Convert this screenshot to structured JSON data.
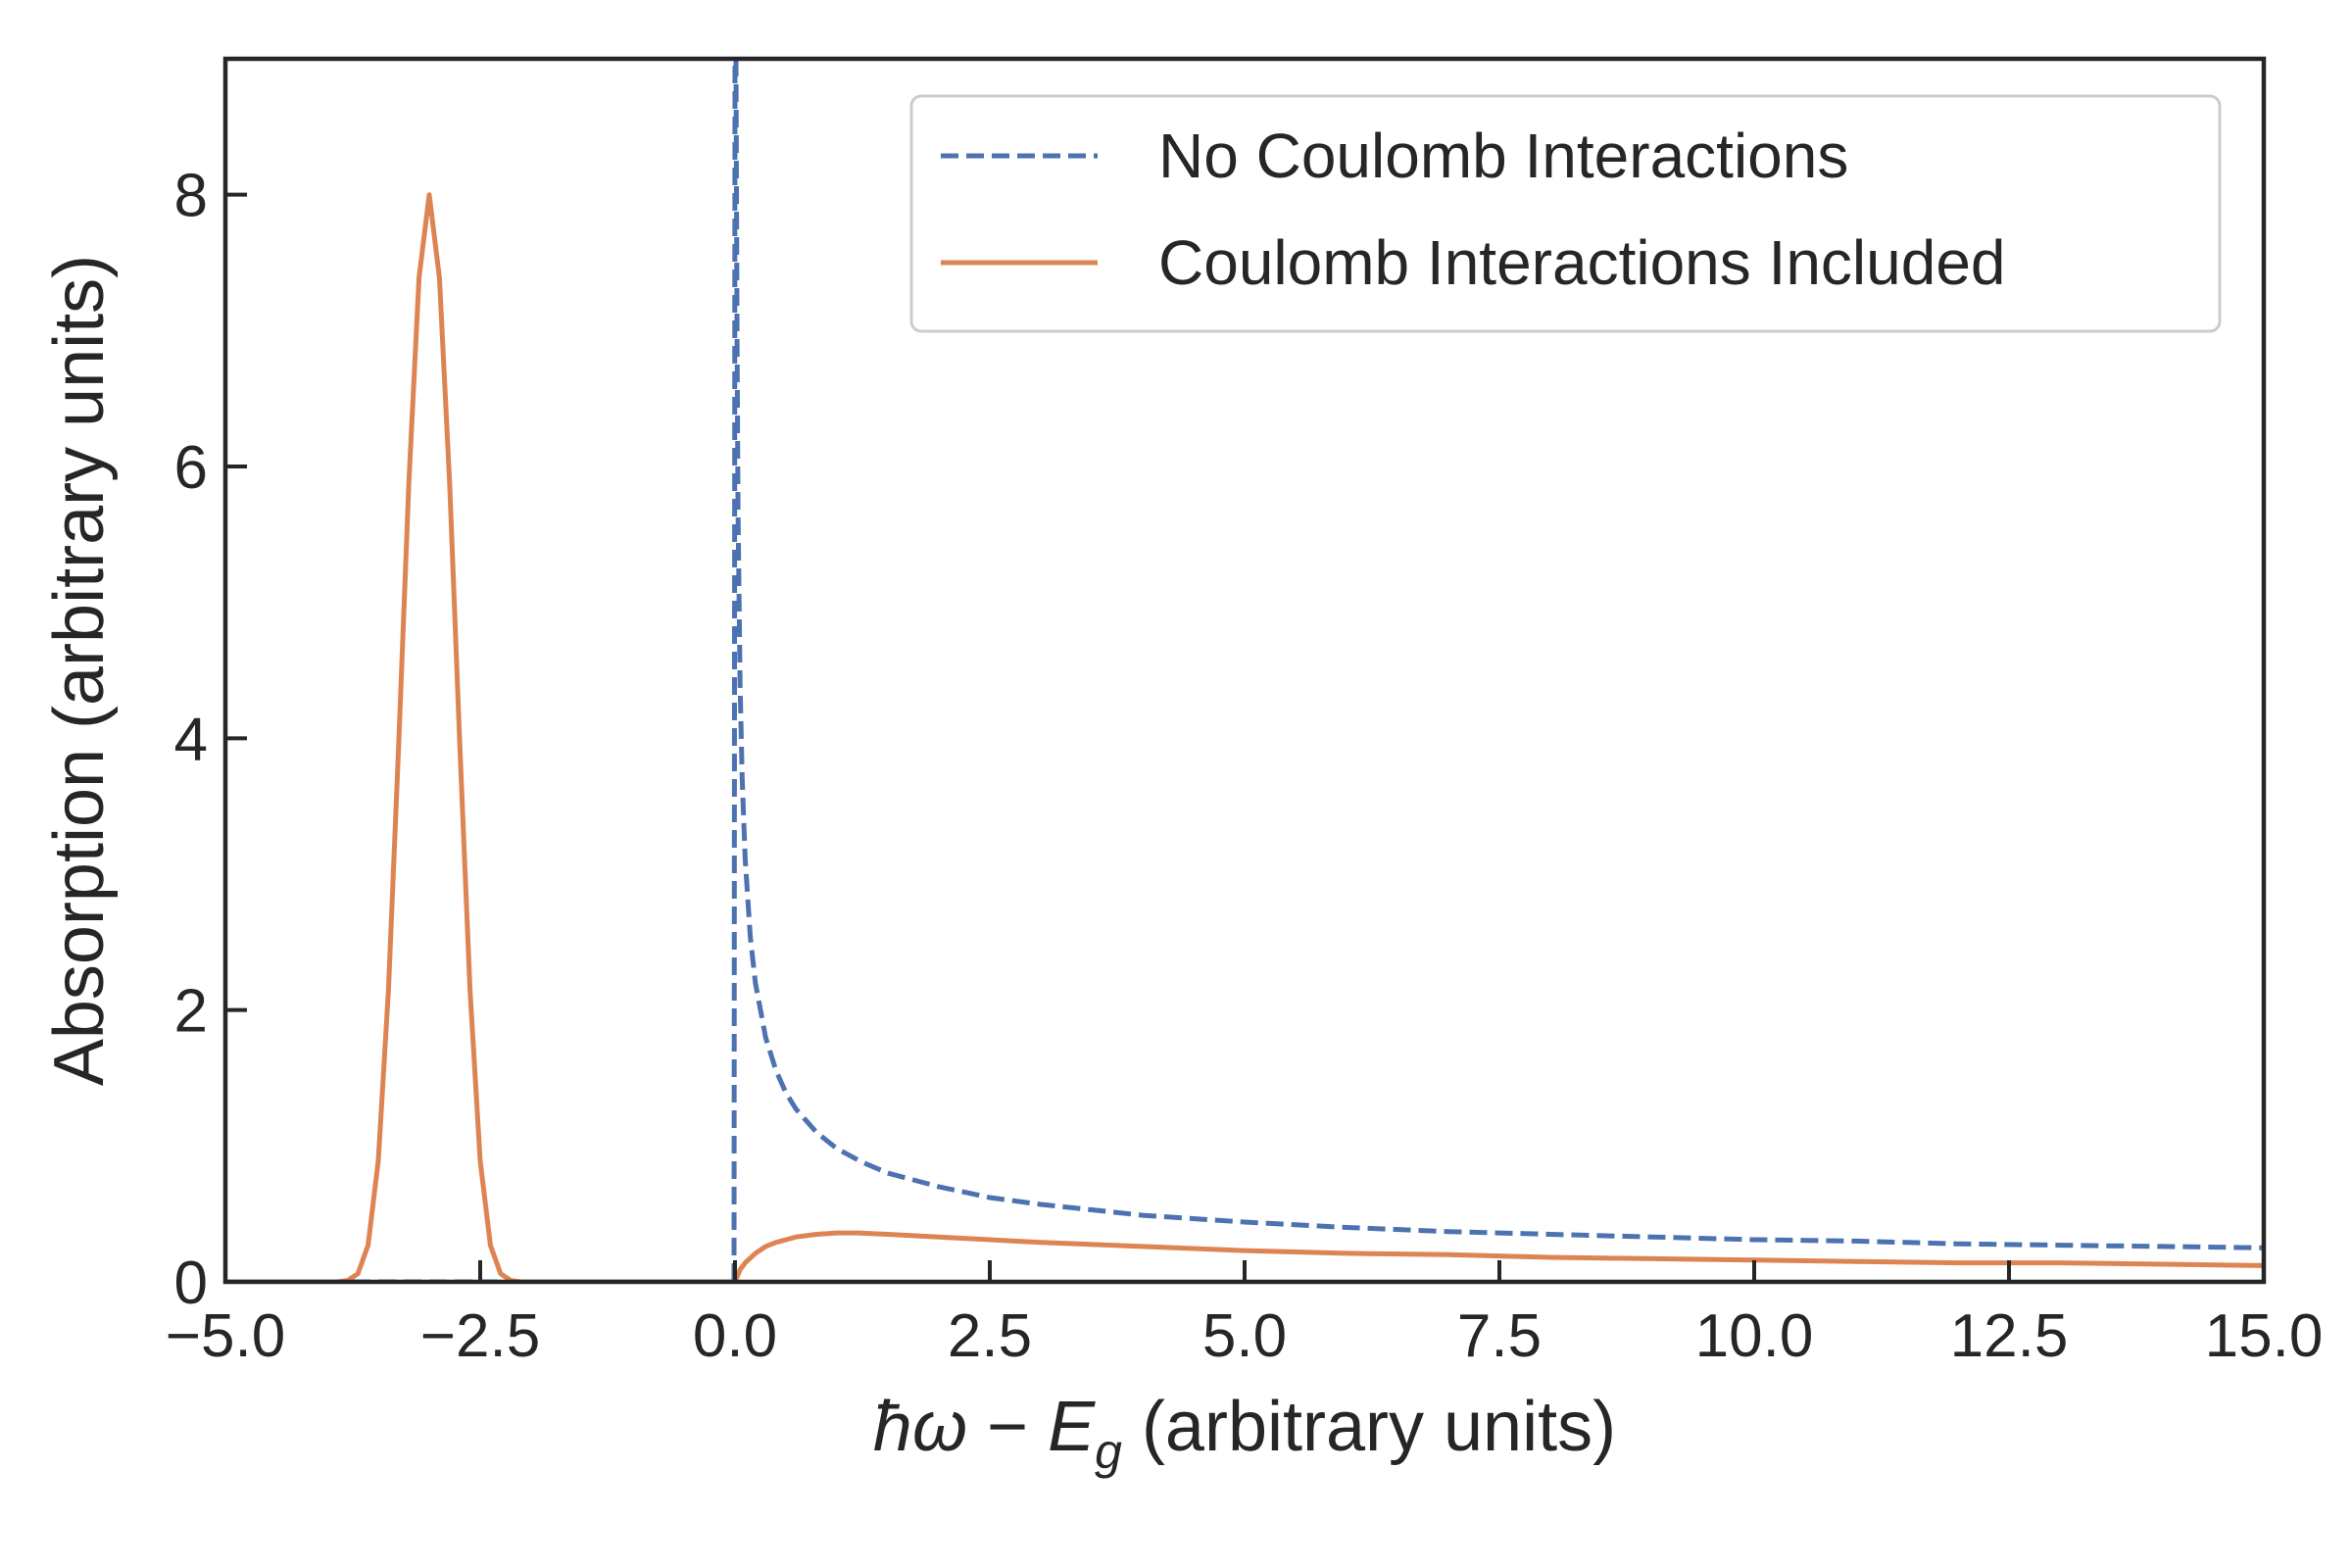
{
  "chart_data": {
    "type": "line",
    "xlabel_parts": {
      "hbar": "ħ",
      "omega": "ω",
      "minus": " − ",
      "e": "E",
      "g": "g",
      "units": " (arbitrary units)"
    },
    "ylabel": "Absorption (arbitrary units)",
    "xlim": [
      -5.0,
      15.0
    ],
    "ylim": [
      0,
      9
    ],
    "x_ticks": [
      -5.0,
      -2.5,
      0.0,
      2.5,
      5.0,
      7.5,
      10.0,
      12.5,
      15.0
    ],
    "x_tick_labels": [
      "−5.0",
      "−2.5",
      "0.0",
      "2.5",
      "5.0",
      "7.5",
      "10.0",
      "12.5",
      "15.0"
    ],
    "y_ticks": [
      0,
      2,
      4,
      6,
      8
    ],
    "y_tick_labels": [
      "0",
      "2",
      "4",
      "6",
      "8"
    ],
    "grid": false,
    "legend_position": "top-right",
    "series": [
      {
        "name": "No Coulomb Interactions",
        "color": "#4c72b0",
        "style": "dashed",
        "x": [
          -5.0,
          -0.01,
          0.0,
          0.005,
          0.01,
          0.02,
          0.03,
          0.05,
          0.07,
          0.1,
          0.15,
          0.2,
          0.3,
          0.4,
          0.5,
          0.6,
          0.8,
          1.0,
          1.25,
          1.5,
          2.0,
          2.5,
          3.0,
          3.5,
          4.0,
          5.0,
          6.0,
          7.0,
          8.0,
          9.0,
          10.0,
          11.0,
          12.0,
          13.0,
          14.0,
          15.0
        ],
        "y": [
          0,
          0,
          9.0,
          9.0,
          9.0,
          6.94,
          5.67,
          4.39,
          3.71,
          3.11,
          2.54,
          2.2,
          1.8,
          1.56,
          1.39,
          1.27,
          1.1,
          0.98,
          0.88,
          0.8,
          0.7,
          0.62,
          0.57,
          0.53,
          0.49,
          0.44,
          0.4,
          0.37,
          0.35,
          0.33,
          0.31,
          0.3,
          0.28,
          0.27,
          0.26,
          0.25
        ]
      },
      {
        "name": "Coulomb Interactions Included",
        "color": "#dd8452",
        "style": "solid",
        "x": [
          -5.0,
          -3.9,
          -3.8,
          -3.7,
          -3.6,
          -3.5,
          -3.4,
          -3.3,
          -3.2,
          -3.1,
          -3.0,
          -2.9,
          -2.8,
          -2.7,
          -2.6,
          -2.5,
          -2.4,
          -2.3,
          -2.2,
          -2.1,
          -2.0,
          0.0,
          0.05,
          0.1,
          0.2,
          0.3,
          0.4,
          0.5,
          0.6,
          0.8,
          1.0,
          1.2,
          1.5,
          2.0,
          2.5,
          3.0,
          4.0,
          5.0,
          6.0,
          7.0,
          8.0,
          9.0,
          10.0,
          11.0,
          12.0,
          13.0,
          14.0,
          15.0
        ],
        "y": [
          0,
          0.0,
          0.01,
          0.06,
          0.27,
          0.89,
          2.15,
          3.95,
          5.88,
          7.39,
          8.0,
          7.39,
          5.88,
          3.95,
          2.15,
          0.89,
          0.27,
          0.06,
          0.01,
          0.0,
          0,
          0,
          0.09,
          0.14,
          0.21,
          0.26,
          0.29,
          0.31,
          0.33,
          0.35,
          0.36,
          0.36,
          0.35,
          0.33,
          0.31,
          0.29,
          0.26,
          0.23,
          0.21,
          0.2,
          0.18,
          0.17,
          0.16,
          0.15,
          0.14,
          0.14,
          0.13,
          0.12
        ]
      }
    ]
  }
}
